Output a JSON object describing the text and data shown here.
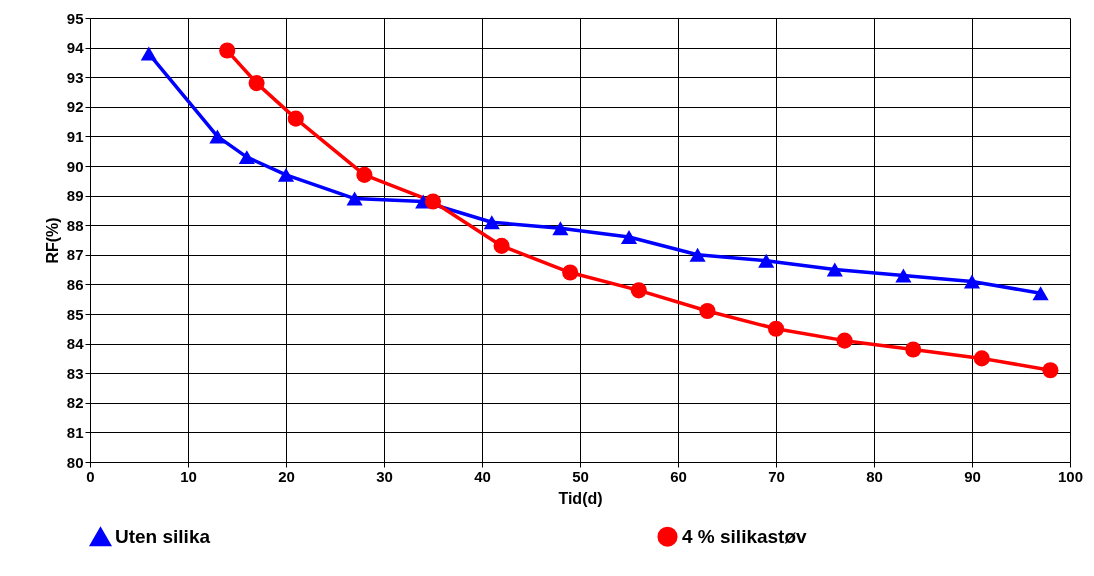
{
  "chart_data": {
    "type": "line",
    "xlabel": "Tid(d)",
    "ylabel": "RF(%)",
    "xlim": [
      0,
      100
    ],
    "xticks": [
      0,
      10,
      20,
      30,
      40,
      50,
      60,
      70,
      80,
      90,
      100
    ],
    "ylim": [
      80,
      95
    ],
    "yticks": [
      80,
      81,
      82,
      83,
      84,
      85,
      86,
      87,
      88,
      89,
      90,
      91,
      92,
      93,
      94,
      95
    ],
    "grid": true,
    "legend": "bottom",
    "line_style": "solid",
    "series": [
      {
        "name": "Uten silika",
        "color": "#0000ff",
        "marker": "triangle",
        "x": [
          6,
          13,
          16,
          20,
          27,
          34,
          41,
          48,
          55,
          62,
          69,
          76,
          83,
          90,
          97
        ],
        "values": [
          93.8,
          91.0,
          90.3,
          89.7,
          88.9,
          88.8,
          88.1,
          87.9,
          87.6,
          87.0,
          86.8,
          86.5,
          86.3,
          86.1,
          85.7
        ]
      },
      {
        "name": "4 % silikastøv",
        "color": "#ff0000",
        "marker": "circle",
        "x": [
          14,
          17,
          21,
          28,
          35,
          42,
          49,
          56,
          63,
          70,
          77,
          84,
          91,
          98
        ],
        "values": [
          93.9,
          92.8,
          91.6,
          89.7,
          88.8,
          87.3,
          86.4,
          85.8,
          85.1,
          84.5,
          84.1,
          83.8,
          83.5,
          83.1
        ]
      }
    ]
  }
}
